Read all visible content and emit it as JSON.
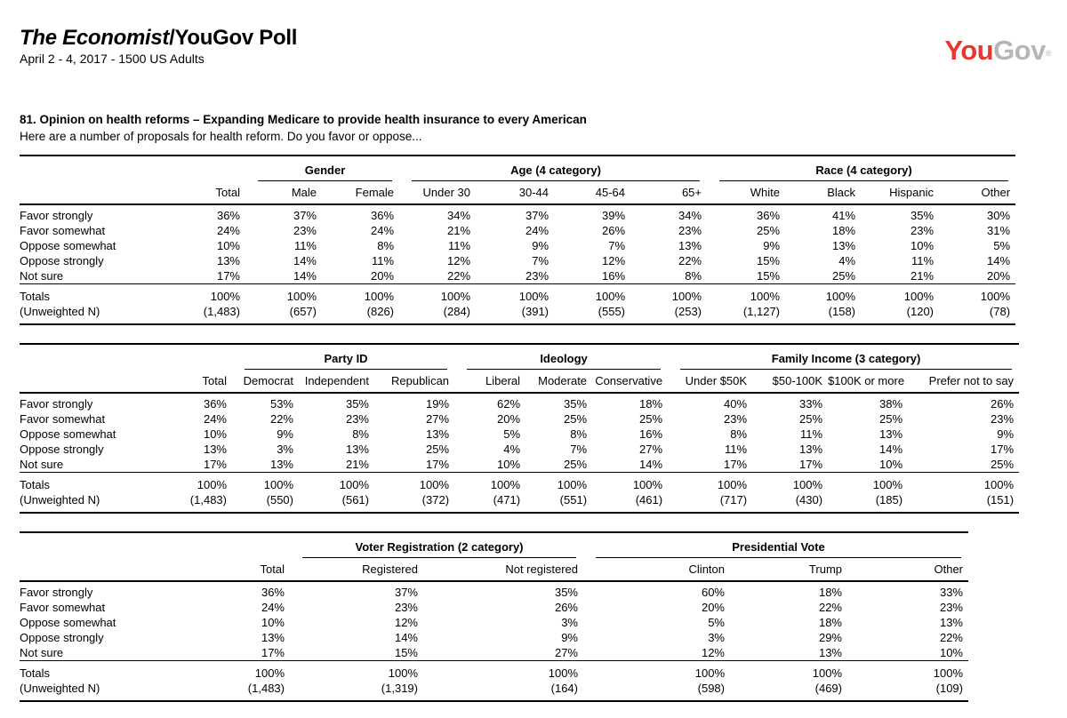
{
  "header": {
    "title_italic": "The Economist",
    "title_regular": "/YouGov Poll",
    "dateline": "April 2 - 4, 2017 - 1500 US Adults",
    "logo": {
      "you": "You",
      "gov": "Gov",
      "registered_mark": "®",
      "you_color": "#e8382e",
      "gov_color": "#b4b6b8"
    }
  },
  "question": {
    "heading": "81. Opinion on health reforms – Expanding Medicare to provide health insurance to every American",
    "prompt": "Here are a number of proposals for health reform. Do you favor or oppose..."
  },
  "totals_label": "Totals",
  "unweighted_label": "(Unweighted N)",
  "tables": [
    {
      "name": "demographics-crosstab",
      "groups": [
        {
          "label": "",
          "columns": [
            "Total"
          ]
        },
        {
          "label": "Gender",
          "columns": [
            "Male",
            "Female"
          ]
        },
        {
          "label": "Age (4 category)",
          "columns": [
            "Under 30",
            "30-44",
            "45-64",
            "65+"
          ]
        },
        {
          "label": "Race (4 category)",
          "columns": [
            "White",
            "Black",
            "Hispanic",
            "Other"
          ]
        }
      ],
      "rows": [
        {
          "label": "Favor strongly",
          "values": [
            "36%",
            "37%",
            "36%",
            "34%",
            "37%",
            "39%",
            "34%",
            "36%",
            "41%",
            "35%",
            "30%"
          ]
        },
        {
          "label": "Favor somewhat",
          "values": [
            "24%",
            "23%",
            "24%",
            "21%",
            "24%",
            "26%",
            "23%",
            "25%",
            "18%",
            "23%",
            "31%"
          ]
        },
        {
          "label": "Oppose somewhat",
          "values": [
            "10%",
            "11%",
            "8%",
            "11%",
            "9%",
            "7%",
            "13%",
            "9%",
            "13%",
            "10%",
            "5%"
          ]
        },
        {
          "label": "Oppose strongly",
          "values": [
            "13%",
            "14%",
            "11%",
            "12%",
            "7%",
            "12%",
            "22%",
            "15%",
            "4%",
            "11%",
            "14%"
          ]
        },
        {
          "label": "Not sure",
          "values": [
            "17%",
            "14%",
            "20%",
            "22%",
            "23%",
            "16%",
            "8%",
            "15%",
            "25%",
            "21%",
            "20%"
          ]
        }
      ],
      "totals": [
        "100%",
        "100%",
        "100%",
        "100%",
        "100%",
        "100%",
        "100%",
        "100%",
        "100%",
        "100%",
        "100%"
      ],
      "unweighted": [
        "(1,483)",
        "(657)",
        "(826)",
        "(284)",
        "(391)",
        "(555)",
        "(253)",
        "(1,127)",
        "(158)",
        "(120)",
        "(78)"
      ]
    },
    {
      "name": "politics-crosstab",
      "groups": [
        {
          "label": "",
          "columns": [
            "Total"
          ]
        },
        {
          "label": "Party ID",
          "columns": [
            "Democrat",
            "Independent",
            "Republican"
          ]
        },
        {
          "label": "Ideology",
          "columns": [
            "Liberal",
            "Moderate",
            "Conservative"
          ]
        },
        {
          "label": "Family Income (3 category)",
          "columns": [
            "Under $50K",
            "$50-100K",
            "$100K or more",
            "Prefer not to say"
          ]
        }
      ],
      "rows": [
        {
          "label": "Favor strongly",
          "values": [
            "36%",
            "53%",
            "35%",
            "19%",
            "62%",
            "35%",
            "18%",
            "40%",
            "33%",
            "38%",
            "26%"
          ]
        },
        {
          "label": "Favor somewhat",
          "values": [
            "24%",
            "22%",
            "23%",
            "27%",
            "20%",
            "25%",
            "25%",
            "23%",
            "25%",
            "25%",
            "23%"
          ]
        },
        {
          "label": "Oppose somewhat",
          "values": [
            "10%",
            "9%",
            "8%",
            "13%",
            "5%",
            "8%",
            "16%",
            "8%",
            "11%",
            "13%",
            "9%"
          ]
        },
        {
          "label": "Oppose strongly",
          "values": [
            "13%",
            "3%",
            "13%",
            "25%",
            "4%",
            "7%",
            "27%",
            "11%",
            "13%",
            "14%",
            "17%"
          ]
        },
        {
          "label": "Not sure",
          "values": [
            "17%",
            "13%",
            "21%",
            "17%",
            "10%",
            "25%",
            "14%",
            "17%",
            "17%",
            "10%",
            "25%"
          ]
        }
      ],
      "totals": [
        "100%",
        "100%",
        "100%",
        "100%",
        "100%",
        "100%",
        "100%",
        "100%",
        "100%",
        "100%",
        "100%"
      ],
      "unweighted": [
        "(1,483)",
        "(550)",
        "(561)",
        "(372)",
        "(471)",
        "(551)",
        "(461)",
        "(717)",
        "(430)",
        "(185)",
        "(151)"
      ]
    },
    {
      "name": "vote-crosstab",
      "groups": [
        {
          "label": "",
          "columns": [
            "Total"
          ]
        },
        {
          "label": "Voter Registration (2 category)",
          "columns": [
            "Registered",
            "Not registered"
          ]
        },
        {
          "label": "Presidential Vote",
          "columns": [
            "Clinton",
            "Trump",
            "Other"
          ]
        }
      ],
      "rows": [
        {
          "label": "Favor strongly",
          "values": [
            "36%",
            "37%",
            "35%",
            "60%",
            "18%",
            "33%"
          ]
        },
        {
          "label": "Favor somewhat",
          "values": [
            "24%",
            "23%",
            "26%",
            "20%",
            "22%",
            "23%"
          ]
        },
        {
          "label": "Oppose somewhat",
          "values": [
            "10%",
            "12%",
            "3%",
            "5%",
            "18%",
            "13%"
          ]
        },
        {
          "label": "Oppose strongly",
          "values": [
            "13%",
            "14%",
            "9%",
            "3%",
            "29%",
            "22%"
          ]
        },
        {
          "label": "Not sure",
          "values": [
            "17%",
            "15%",
            "27%",
            "12%",
            "13%",
            "10%"
          ]
        }
      ],
      "totals": [
        "100%",
        "100%",
        "100%",
        "100%",
        "100%",
        "100%"
      ],
      "unweighted": [
        "(1,483)",
        "(1,319)",
        "(164)",
        "(598)",
        "(469)",
        "(109)"
      ]
    }
  ]
}
